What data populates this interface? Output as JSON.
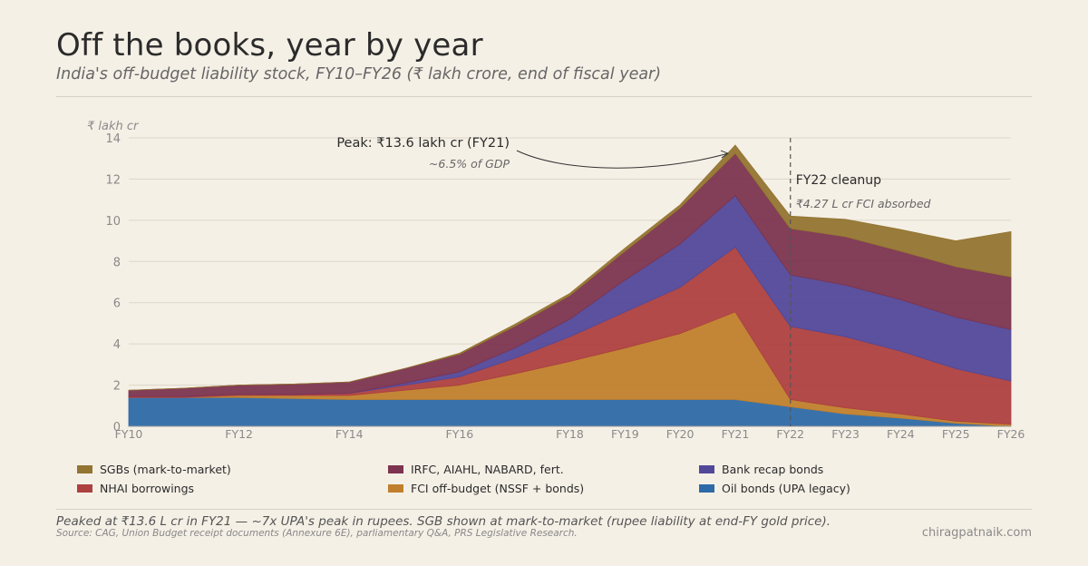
{
  "header": {
    "title": "Off the books, year by year",
    "subtitle": "India's off-budget liability stock, FY10–FY26 (₹ lakh crore, end of fiscal year)"
  },
  "footer": {
    "note": "Peaked at ₹13.6 L cr in FY21 — ~7x UPA's peak in rupees. SGB shown at mark-to-market (rupee liability at end-FY gold price).",
    "source": "Source: CAG, Union Budget receipt documents (Annexure 6E), parliamentary Q&A, PRS Legislative Research.",
    "credit": "chiragpatnaik.com"
  },
  "chart_data": {
    "type": "area",
    "stacked": true,
    "ylabel": "₹ lakh cr",
    "ylim": [
      0,
      14
    ],
    "yticks": [
      0,
      2,
      4,
      6,
      8,
      10,
      12,
      14
    ],
    "grid": true,
    "x": [
      2010,
      2011,
      2012,
      2013,
      2014,
      2015,
      2016,
      2017,
      2018,
      2019,
      2020,
      2021,
      2022,
      2023,
      2024,
      2025,
      2026
    ],
    "xtick_values": [
      2010,
      2012,
      2014,
      2016,
      2018,
      2019,
      2020,
      2021,
      2022,
      2023,
      2024,
      2025,
      2026
    ],
    "xtick_labels": [
      "FY10",
      "FY12",
      "FY14",
      "FY16",
      "FY18",
      "FY19",
      "FY20",
      "FY21",
      "FY22",
      "FY23",
      "FY24",
      "FY25",
      "FY26"
    ],
    "series": [
      {
        "name": "Oil bonds (UPA legacy)",
        "color": "#2e6aa8",
        "values": [
          1.4,
          1.4,
          1.4,
          1.35,
          1.3,
          1.3,
          1.3,
          1.3,
          1.3,
          1.3,
          1.3,
          1.3,
          0.95,
          0.6,
          0.4,
          0.15,
          0.0
        ]
      },
      {
        "name": "FCI off-budget (NSSF + bonds)",
        "color": "#c07f2c",
        "values": [
          0.0,
          0.0,
          0.1,
          0.15,
          0.2,
          0.45,
          0.7,
          1.25,
          1.85,
          2.5,
          3.2,
          4.25,
          0.35,
          0.3,
          0.2,
          0.1,
          0.1
        ]
      },
      {
        "name": "NHAI borrowings",
        "color": "#ad4040",
        "values": [
          0.05,
          0.05,
          0.05,
          0.05,
          0.1,
          0.25,
          0.4,
          0.75,
          1.2,
          1.75,
          2.25,
          3.15,
          3.55,
          3.45,
          3.05,
          2.55,
          2.1
        ]
      },
      {
        "name": "Bank recap bonds",
        "color": "#52489a",
        "values": [
          0.0,
          0.0,
          0.0,
          0.0,
          0.0,
          0.1,
          0.25,
          0.5,
          0.85,
          1.55,
          2.1,
          2.5,
          2.5,
          2.5,
          2.5,
          2.5,
          2.5
        ]
      },
      {
        "name": "IRFC, AIAHL, NABARD, fert.",
        "color": "#7c3450",
        "values": [
          0.3,
          0.4,
          0.45,
          0.5,
          0.55,
          0.7,
          0.85,
          1.05,
          1.15,
          1.4,
          1.75,
          2.05,
          2.25,
          2.35,
          2.35,
          2.45,
          2.55
        ]
      },
      {
        "name": "SGBs (mark-to-market)",
        "color": "#937531",
        "values": [
          0.0,
          0.0,
          0.0,
          0.0,
          0.0,
          0.0,
          0.05,
          0.1,
          0.1,
          0.15,
          0.15,
          0.4,
          0.6,
          0.85,
          1.05,
          1.25,
          2.2
        ]
      }
    ],
    "annotations": [
      {
        "id": "peak",
        "x": 2021,
        "y": 13.6,
        "label": "Peak: ₹13.6 lakh cr (FY21)",
        "sublabel": "~6.5% of GDP"
      },
      {
        "id": "cleanup",
        "x": 2022,
        "label": "FY22 cleanup",
        "sublabel": "₹4.27 L cr FCI absorbed"
      }
    ],
    "legend_order": [
      "SGBs (mark-to-market)",
      "IRFC, AIAHL, NABARD, fert.",
      "Bank recap bonds",
      "NHAI borrowings",
      "FCI off-budget (NSSF + bonds)",
      "Oil bonds (UPA legacy)"
    ],
    "legend_placement": "bottom"
  }
}
